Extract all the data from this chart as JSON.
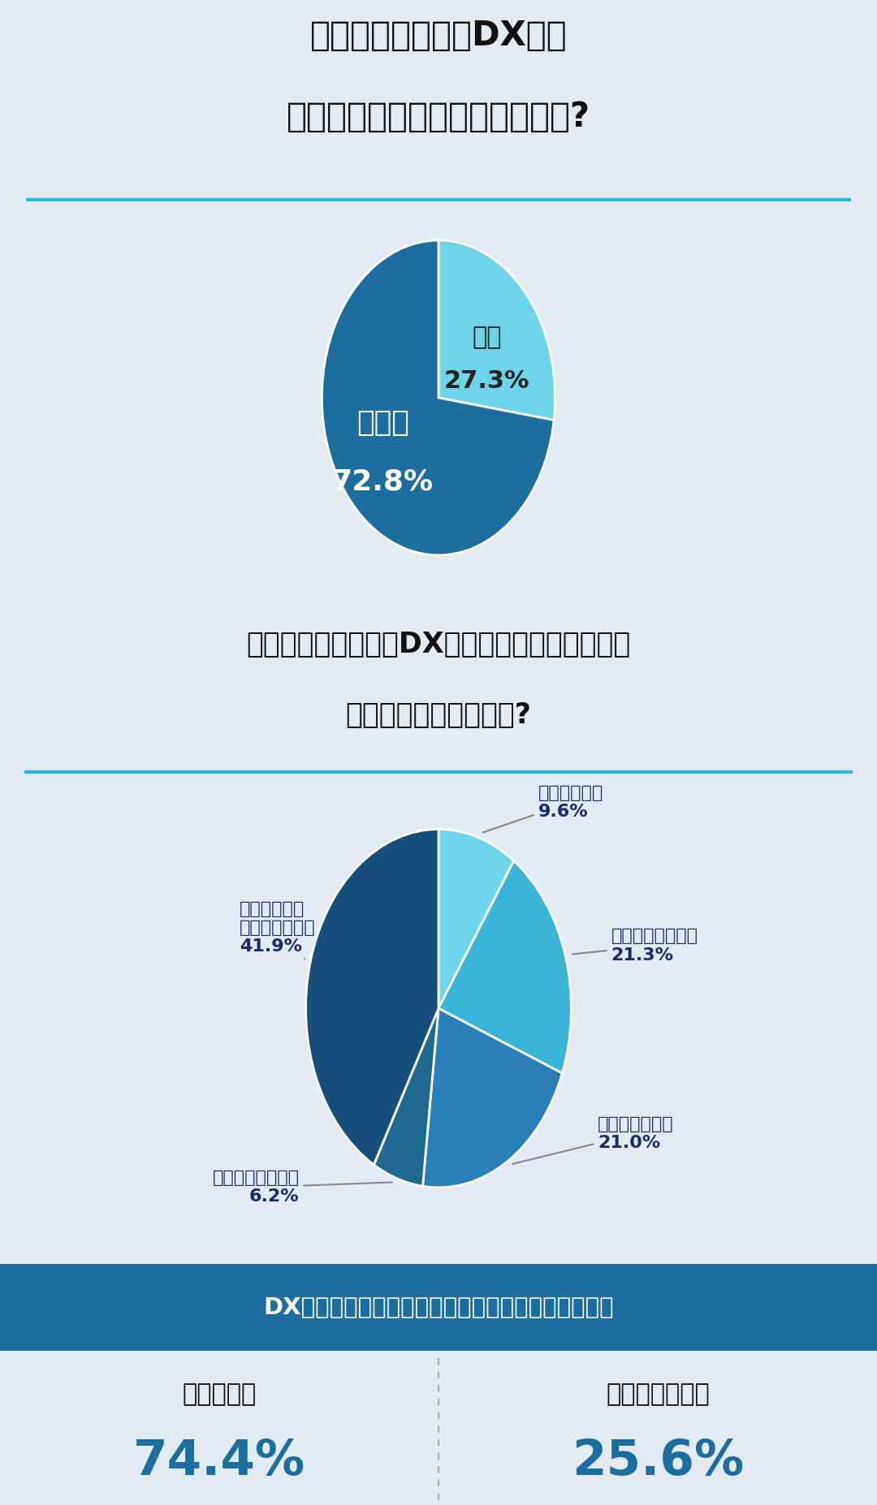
{
  "bg_color": "#e2eaf2",
  "white_gap": "#ffffff",
  "accent_color": "#29b8d8",
  "section1": {
    "title_line1": "あなたの勤務先はDX化が",
    "title_line2": "十分に進んでいると思いますか?",
    "title_color": "#111111",
    "slices": [
      27.3,
      72.8
    ],
    "colors": [
      "#6dd4ea",
      "#1b6e9e"
    ],
    "label_hai_line1": "はい",
    "label_hai_line2": "27.3%",
    "label_iie_line1": "いいえ",
    "label_iie_line2": "72.8%",
    "hai_color": "#222222",
    "iie_color": "#ffffff"
  },
  "section2": {
    "title_line1": "「あなた自身」は、DX化が進んでいないことに",
    "title_line2": "課題を感じていますか?",
    "title_color": "#111111",
    "slices": [
      9.6,
      21.3,
      21.0,
      6.2,
      41.9
    ],
    "colors": [
      "#6dd4ea",
      "#3ab5d8",
      "#2980b9",
      "#1e6a8e",
      "#154f7a"
    ],
    "label_color": "#1a2a6a",
    "labels": [
      "大いに感じる\n9.6%",
      "感じることがある\n21.3%",
      "あまり感じない\n21.0%",
      "まったく感じない\n6.2%",
      "わからない・\n意識していない\n41.9%"
    ]
  },
  "section3": {
    "header": "DX化が進んでいないことに「課題を感じる」と回答",
    "header_bg": "#1b6e9e",
    "header_text_color": "#ffffff",
    "left_label": "転職したい",
    "left_value": "74.4%",
    "right_label": "転職したくない",
    "right_value": "25.6%",
    "value_color": "#1b6e9e",
    "label_color": "#111111",
    "divider_color": "#aaaaaa",
    "bg_color": "#ffffff"
  }
}
